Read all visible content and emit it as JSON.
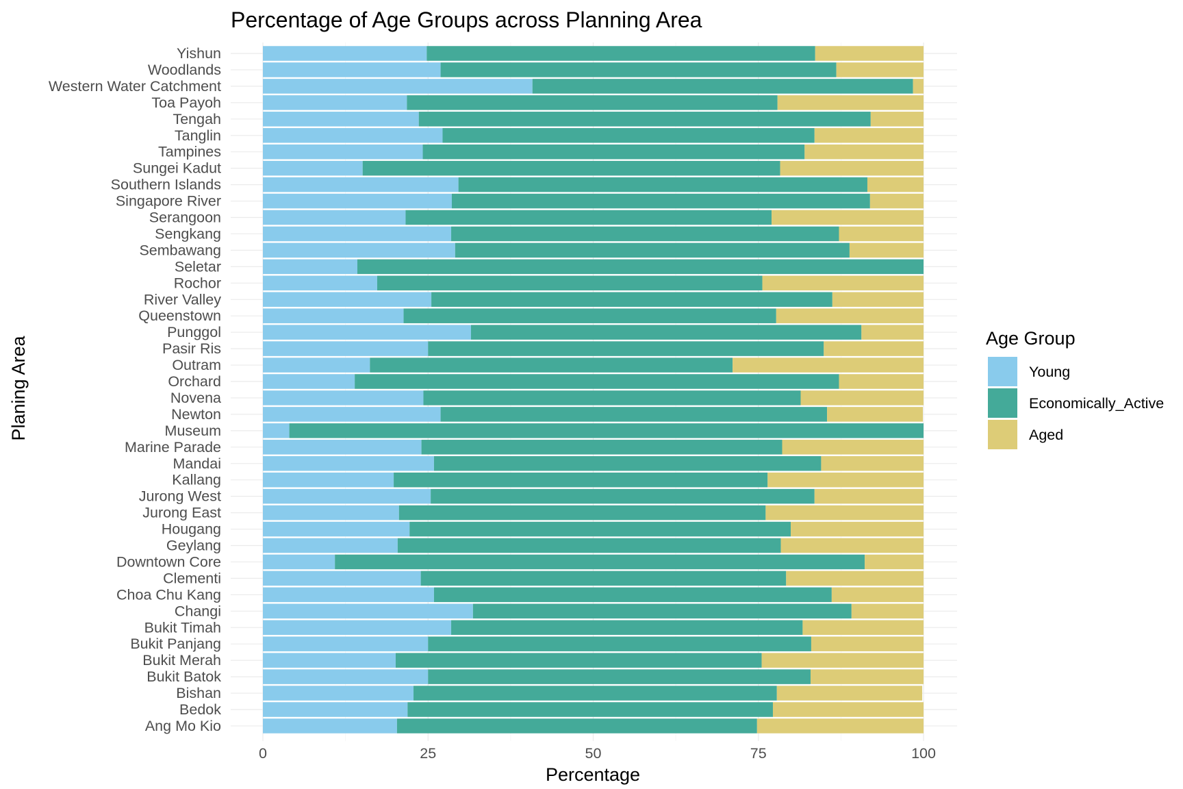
{
  "chart_data": {
    "type": "bar",
    "orientation": "horizontal",
    "stacked": true,
    "title": "Percentage of Age Groups across Planning Area",
    "xlabel": "Percentage",
    "ylabel": "Planing Area",
    "xlim": [
      0,
      100
    ],
    "x_ticks": [
      0,
      25,
      50,
      75,
      100
    ],
    "grid": true,
    "legend": {
      "title": "Age Group",
      "position": "right"
    },
    "categories": [
      "Yishun",
      "Woodlands",
      "Western Water Catchment",
      "Toa Payoh",
      "Tengah",
      "Tanglin",
      "Tampines",
      "Sungei Kadut",
      "Southern Islands",
      "Singapore River",
      "Serangoon",
      "Sengkang",
      "Sembawang",
      "Seletar",
      "Rochor",
      "River Valley",
      "Queenstown",
      "Punggol",
      "Pasir Ris",
      "Outram",
      "Orchard",
      "Novena",
      "Newton",
      "Museum",
      "Marine Parade",
      "Mandai",
      "Kallang",
      "Jurong West",
      "Jurong East",
      "Hougang",
      "Geylang",
      "Downtown Core",
      "Clementi",
      "Choa Chu Kang",
      "Changi",
      "Bukit Timah",
      "Bukit Panjang",
      "Bukit Merah",
      "Bukit Batok",
      "Bishan",
      "Bedok",
      "Ang Mo Kio"
    ],
    "series": [
      {
        "name": "Young",
        "color": "#89cbec",
        "values": [
          24.8,
          26.9,
          40.8,
          21.8,
          23.6,
          27.2,
          24.2,
          15.1,
          29.6,
          28.6,
          21.6,
          28.5,
          29.1,
          14.3,
          17.3,
          25.5,
          21.3,
          31.5,
          25.0,
          16.2,
          13.9,
          24.3,
          26.9,
          4.0,
          24.0,
          25.9,
          19.8,
          25.4,
          20.6,
          22.2,
          20.4,
          10.9,
          23.9,
          25.9,
          31.8,
          28.5,
          25.0,
          20.1,
          25.0,
          22.8,
          21.9,
          20.3
        ]
      },
      {
        "name": "Economically_Active",
        "color": "#44aa99",
        "values": [
          58.8,
          59.9,
          57.6,
          56.1,
          68.4,
          56.3,
          57.8,
          63.2,
          61.9,
          63.3,
          55.4,
          58.7,
          59.7,
          85.7,
          58.3,
          60.7,
          56.4,
          59.1,
          59.9,
          54.9,
          73.3,
          57.1,
          58.5,
          96.0,
          54.6,
          58.6,
          56.6,
          58.1,
          55.5,
          57.7,
          58.0,
          80.2,
          55.3,
          60.2,
          57.3,
          53.2,
          58.0,
          55.4,
          57.9,
          55.0,
          55.3,
          54.5
        ]
      },
      {
        "name": "Aged",
        "color": "#ddcc77",
        "values": [
          16.4,
          13.2,
          1.6,
          22.1,
          8.0,
          16.5,
          18.0,
          21.7,
          8.5,
          8.1,
          23.0,
          12.8,
          11.2,
          0.0,
          24.4,
          13.8,
          22.3,
          9.4,
          15.1,
          28.9,
          12.8,
          18.6,
          14.5,
          0.0,
          21.4,
          15.5,
          23.6,
          16.5,
          23.9,
          20.1,
          21.6,
          8.9,
          20.8,
          13.9,
          10.9,
          18.3,
          17.0,
          24.5,
          17.1,
          22.0,
          22.8,
          25.2
        ]
      }
    ]
  }
}
